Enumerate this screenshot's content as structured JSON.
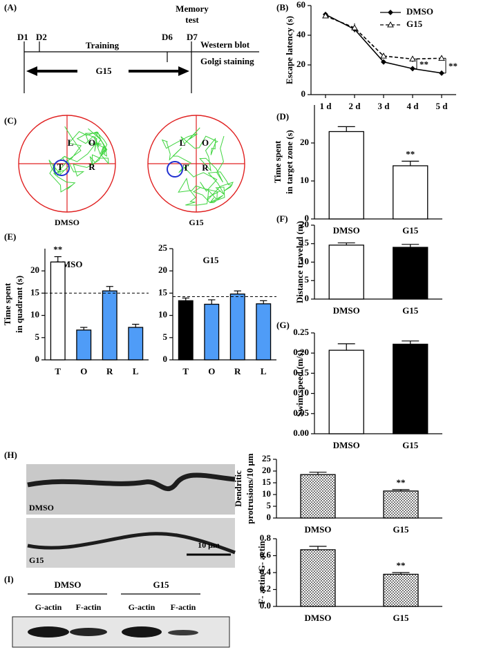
{
  "panel_A": {
    "label": "(A)",
    "days": [
      "D1",
      "D2",
      "D6",
      "D7"
    ],
    "phase": "Training",
    "memory_test": [
      "Memory",
      "test"
    ],
    "assays": [
      "Western blot",
      "Golgi staining"
    ],
    "treatment": "G15"
  },
  "panel_C": {
    "label": "(C)",
    "mazes": [
      {
        "caption": "DMSO",
        "quadrants": [
          "L",
          "O",
          "T",
          "R"
        ]
      },
      {
        "caption": "G15",
        "quadrants": [
          "L",
          "O",
          "T",
          "R"
        ]
      }
    ]
  },
  "panel_H": {
    "label": "(H)",
    "images": [
      "DMSO",
      "G15"
    ],
    "scale_bar": "10 μm"
  },
  "panel_I": {
    "label": "(I)",
    "groups": [
      "DMSO",
      "G15"
    ],
    "lanes": [
      "G-actin",
      "F-actin",
      "G-actin",
      "F-actin"
    ]
  },
  "chart_data": [
    {
      "type": "line",
      "panel": "(B)",
      "y_label": "Escape  latency (s)",
      "categories": [
        "1 d",
        "2 d",
        "3 d",
        "4 d",
        "5 d"
      ],
      "series": [
        {
          "name": "DMSO",
          "color": "#000000",
          "line_style": "solid",
          "marker": "diamond",
          "values": [
            54,
            44,
            22,
            17.5,
            14.5
          ],
          "errors": [
            1,
            2,
            1,
            1.5,
            1.5
          ]
        },
        {
          "name": "G15",
          "color": "#000000",
          "line_style": "dashed",
          "marker": "triangle",
          "values": [
            53,
            45,
            26,
            24,
            24.5
          ],
          "errors": [
            1,
            3,
            1.5,
            2,
            1.5
          ]
        }
      ],
      "ylim": [
        0,
        60
      ],
      "yticks": [
        0,
        20,
        40,
        60
      ],
      "legend": "upper right",
      "annotations": [
        {
          "text": "**",
          "category": "4 d"
        },
        {
          "text": "**",
          "category": "5 d"
        }
      ]
    },
    {
      "type": "bar",
      "panel": "(D)",
      "y_label": [
        "Time spent",
        "in target zone (s)"
      ],
      "categories": [
        "DMSO",
        "G15"
      ],
      "values": [
        23,
        14
      ],
      "errors": [
        1.3,
        1.2
      ],
      "colors": [
        "#ffffff",
        "#ffffff"
      ],
      "ylim": [
        0,
        30
      ],
      "yticks": [
        0,
        10,
        20
      ],
      "annotations": [
        {
          "text": "**",
          "category": "G15"
        }
      ]
    },
    {
      "type": "bar",
      "panel": "(F)",
      "y_label": "Distance traveled (m)",
      "categories": [
        "DMSO",
        "G15"
      ],
      "values": [
        14.6,
        14
      ],
      "errors": [
        0.6,
        0.8
      ],
      "colors": [
        "#ffffff",
        "#000000"
      ],
      "ylim": [
        0,
        20
      ],
      "yticks": [
        0,
        5,
        10,
        15,
        20
      ]
    },
    {
      "type": "bar",
      "panel": "(G)",
      "y_label": "Swim speed (m/s)",
      "categories": [
        "DMSO",
        "G15"
      ],
      "values": [
        0.207,
        0.222
      ],
      "errors": [
        0.016,
        0.008
      ],
      "colors": [
        "#ffffff",
        "#000000"
      ],
      "ylim": [
        0,
        0.25
      ],
      "yticks": [
        {
          "value": 0,
          "label": "0.00"
        },
        {
          "value": 0.05,
          "label": "0.05"
        },
        {
          "value": 0.1,
          "label": "0.10"
        },
        {
          "value": 0.15,
          "label": "0.15"
        },
        {
          "value": 0.2,
          "label": "0.20"
        },
        {
          "value": 0.25,
          "label": "0.25"
        }
      ]
    },
    {
      "type": "bar",
      "panel": "(E)",
      "subtitle": "DMSO",
      "y_label": [
        "Time spent",
        "in quadrant (s)"
      ],
      "categories": [
        "T",
        "O",
        "R",
        "L"
      ],
      "values": [
        22,
        6.7,
        15.5,
        7.3
      ],
      "errors": [
        1.2,
        0.6,
        1,
        0.7
      ],
      "colors": [
        "#ffffff",
        "#4f9cf7",
        "#4f9cf7",
        "#4f9cf7"
      ],
      "ylim": [
        0,
        25
      ],
      "yticks": [
        0,
        5,
        10,
        15,
        20
      ],
      "reference_line": 15,
      "annotations": [
        {
          "text": "**",
          "category": "T"
        }
      ]
    },
    {
      "type": "bar",
      "subtitle": "G15",
      "categories": [
        "T",
        "O",
        "R",
        "L"
      ],
      "values": [
        13.3,
        12.5,
        14.8,
        12.6
      ],
      "errors": [
        0.6,
        1,
        0.7,
        0.7
      ],
      "colors": [
        "#000000",
        "#4f9cf7",
        "#4f9cf7",
        "#4f9cf7"
      ],
      "ylim": [
        0,
        25
      ],
      "yticks": [
        0,
        5,
        10,
        15,
        20,
        25
      ],
      "reference_line": 14.2
    },
    {
      "type": "bar",
      "y_label": [
        "Dendritic",
        "protrusions/10 μm"
      ],
      "categories": [
        "DMSO",
        "G15"
      ],
      "values": [
        18.5,
        11.5
      ],
      "errors": [
        1,
        0.6
      ],
      "colors": [
        "#777777",
        "#777777"
      ],
      "pattern": "checkered",
      "ylim": [
        0,
        25
      ],
      "yticks": [
        0,
        5,
        10,
        15,
        20,
        25
      ],
      "annotations": [
        {
          "text": "**",
          "category": "G15"
        }
      ]
    },
    {
      "type": "bar",
      "y_label": "F- actin/G- actin",
      "categories": [
        "DMSO",
        "G15"
      ],
      "values": [
        0.67,
        0.38
      ],
      "errors": [
        0.04,
        0.02
      ],
      "colors": [
        "#777777",
        "#777777"
      ],
      "pattern": "checkered",
      "ylim": [
        0,
        0.8
      ],
      "yticks": [
        {
          "value": 0,
          "label": "0.0"
        },
        {
          "value": 0.2,
          "label": "0.2"
        },
        {
          "value": 0.4,
          "label": "0.4"
        },
        {
          "value": 0.6,
          "label": "0.6"
        },
        {
          "value": 0.8,
          "label": "0.8"
        }
      ],
      "annotations": [
        {
          "text": "**",
          "category": "G15"
        }
      ]
    }
  ]
}
